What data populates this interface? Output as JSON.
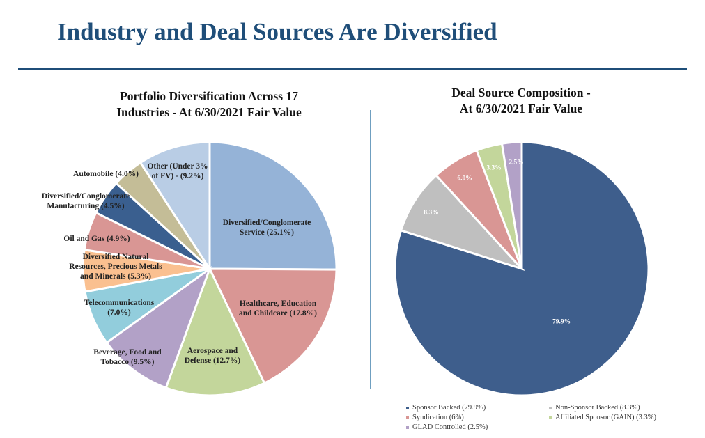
{
  "page": {
    "title": "Industry and Deal Sources Are Diversified"
  },
  "chart_data": [
    {
      "type": "pie",
      "title_lines": [
        "Portfolio Diversification Across 17",
        "Industries - At 6/30/2021 Fair Value"
      ],
      "slices": [
        {
          "name": "Diversified/Conglomerate Service",
          "value": 25.1,
          "color": "#95b3d7",
          "label_lines": [
            "Diversified/Conglomerate",
            "Service (25.1%)"
          ]
        },
        {
          "name": "Healthcare, Education and Childcare",
          "value": 17.8,
          "color": "#d99694",
          "label_lines": [
            "Healthcare, Education",
            "and Childcare (17.8%)"
          ]
        },
        {
          "name": "Aerospace and Defense",
          "value": 12.7,
          "color": "#c3d69b",
          "label_lines": [
            "Aerospace and",
            "Defense (12.7%)"
          ]
        },
        {
          "name": "Beverage, Food and Tobacco",
          "value": 9.5,
          "color": "#b2a1c7",
          "label_lines": [
            "Beverage, Food and",
            "Tobacco (9.5%)"
          ]
        },
        {
          "name": "Telecommunications",
          "value": 7.0,
          "color": "#92cddc",
          "label_lines": [
            "Telecommunications",
            "(7.0%)"
          ]
        },
        {
          "name": "Diversified Natural Resources, Precious Metals and Minerals",
          "value": 5.3,
          "color": "#fac090",
          "label_lines": [
            "Diversified Natural",
            "Resources, Precious Metals",
            "and Minerals (5.3%)"
          ]
        },
        {
          "name": "Oil and Gas",
          "value": 4.9,
          "color": "#d99694",
          "label_lines": [
            "Oil and Gas (4.9%)"
          ]
        },
        {
          "name": "Diversified/Conglomerate Manufacturing",
          "value": 4.5,
          "color": "#3a5f8f",
          "label_lines": [
            "Diversified/Conglomerate",
            "Manufacturing (4.5%)"
          ]
        },
        {
          "name": "Automobile",
          "value": 4.0,
          "color": "#c4bd97",
          "label_lines": [
            "Automobile (4.0%)"
          ]
        },
        {
          "name": "Other (Under 3% of FV)",
          "value": 9.2,
          "color": "#b9cde5",
          "label_lines": [
            "Other (Under 3%",
            "of FV) - (9.2%)"
          ]
        }
      ]
    },
    {
      "type": "pie",
      "title_lines": [
        "Deal Source Composition -",
        "At 6/30/2021 Fair Value"
      ],
      "slices": [
        {
          "name": "Sponsor Backed",
          "value": 79.9,
          "color": "#3e5e8c",
          "label": "79.9%",
          "legend": "Sponsor Backed (79.9%)"
        },
        {
          "name": "Non-Sponsor Backed",
          "value": 8.3,
          "color": "#bfbfbf",
          "label": "8.3%",
          "legend": "Non-Sponsor Backed (8.3%)"
        },
        {
          "name": "Syndication",
          "value": 6.0,
          "color": "#d99694",
          "label": "6.0%",
          "legend": "Syndication (6%)"
        },
        {
          "name": "Affiliated Sponsor (GAIN)",
          "value": 3.3,
          "color": "#c3d69b",
          "label": "3.3%",
          "legend": "Affiliated Sponsor (GAIN) (3.3%)"
        },
        {
          "name": "GLAD Controlled",
          "value": 2.5,
          "color": "#b2a1c7",
          "label": "2.5%",
          "legend": "GLAD Controlled (2.5%)"
        }
      ]
    }
  ]
}
